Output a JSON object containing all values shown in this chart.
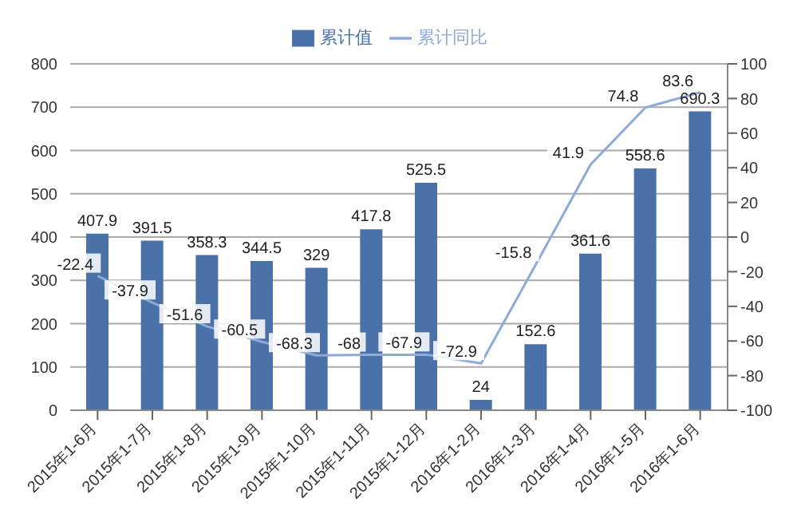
{
  "chart_data": {
    "type": "bar",
    "categories": [
      "2015年1-6月",
      "2015年1-7月",
      "2015年1-8月",
      "2015年1-9月",
      "2015年1-10月",
      "2015年1-11月",
      "2015年1-12月",
      "2016年1-2月",
      "2016年1-3月",
      "2016年1-4月",
      "2016年1-5月",
      "2016年1-6月"
    ],
    "series": [
      {
        "name": "累计值",
        "color": "#4a72a8",
        "values": [
          407.9,
          391.5,
          358.3,
          344.5,
          329,
          417.8,
          525.5,
          24,
          152.6,
          361.6,
          558.6,
          690.3
        ]
      },
      {
        "name": "累计同比",
        "type": "line",
        "axis": "y2",
        "color": "#8eaadb",
        "values": [
          -22.4,
          -37.9,
          -51.6,
          -60.5,
          -68.3,
          -68,
          -67.9,
          -72.9,
          -15.8,
          41.9,
          74.8,
          83.6
        ]
      }
    ],
    "ylim": [
      0,
      800
    ],
    "yticks": [
      0,
      100,
      200,
      300,
      400,
      500,
      600,
      700,
      800
    ],
    "y2lim": [
      -100,
      100
    ],
    "y2ticks": [
      -100,
      -80,
      -60,
      -40,
      -20,
      0,
      20,
      40,
      60,
      80,
      100
    ],
    "grid": "y",
    "legend": "top",
    "data_labels": true,
    "marker": "none",
    "line_style": "solid"
  }
}
